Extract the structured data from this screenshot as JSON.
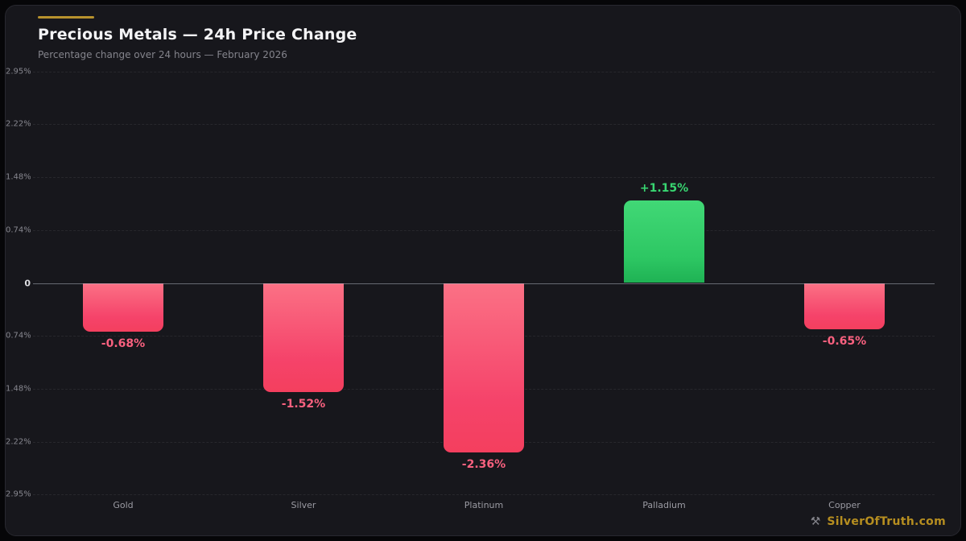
{
  "header": {
    "title": "Precious Metals — 24h Price Change",
    "subtitle": "Percentage change over 24 hours — February 2026"
  },
  "footer": {
    "watermark": "SilverOfTruth.com",
    "icon": "pick-hammer-icon",
    "icon_glyph": "⚒"
  },
  "chart_data": {
    "type": "bar",
    "title": "Precious Metals — 24h Price Change",
    "subtitle": "Percentage change over 24 hours — February 2026",
    "categories": [
      "Gold",
      "Silver",
      "Platinum",
      "Palladium",
      "Copper"
    ],
    "values": [
      -0.68,
      -1.52,
      -2.36,
      1.15,
      -0.65
    ],
    "value_labels": [
      "-0.68%",
      "-1.52%",
      "-2.36%",
      "+1.15%",
      "-0.65%"
    ],
    "xlabel": "",
    "ylabel": "",
    "ylim": [
      -2.95,
      2.95
    ],
    "ytick_values": [
      2.95,
      2.22,
      1.48,
      0.74,
      0,
      -0.74,
      -1.48,
      -2.22,
      -2.95
    ],
    "ytick_labels": [
      "2.95%",
      "2.22%",
      "1.48%",
      "0.74%",
      "0",
      "0.74%",
      "1.48%",
      "2.22%",
      "2.95%"
    ],
    "grid": "dashed horizontal",
    "legend": "none",
    "colors": {
      "negative_bar_top": "#fb7185",
      "negative_bar_bottom": "#f43f5e",
      "negative_label": "#f9617f",
      "positive_bar_top": "#41d876",
      "positive_bar_bottom": "#1fb254",
      "positive_label": "#38d671",
      "accent_gold": "#b8922d",
      "background": "#17171c",
      "zero_line": "#aaafb9"
    }
  }
}
